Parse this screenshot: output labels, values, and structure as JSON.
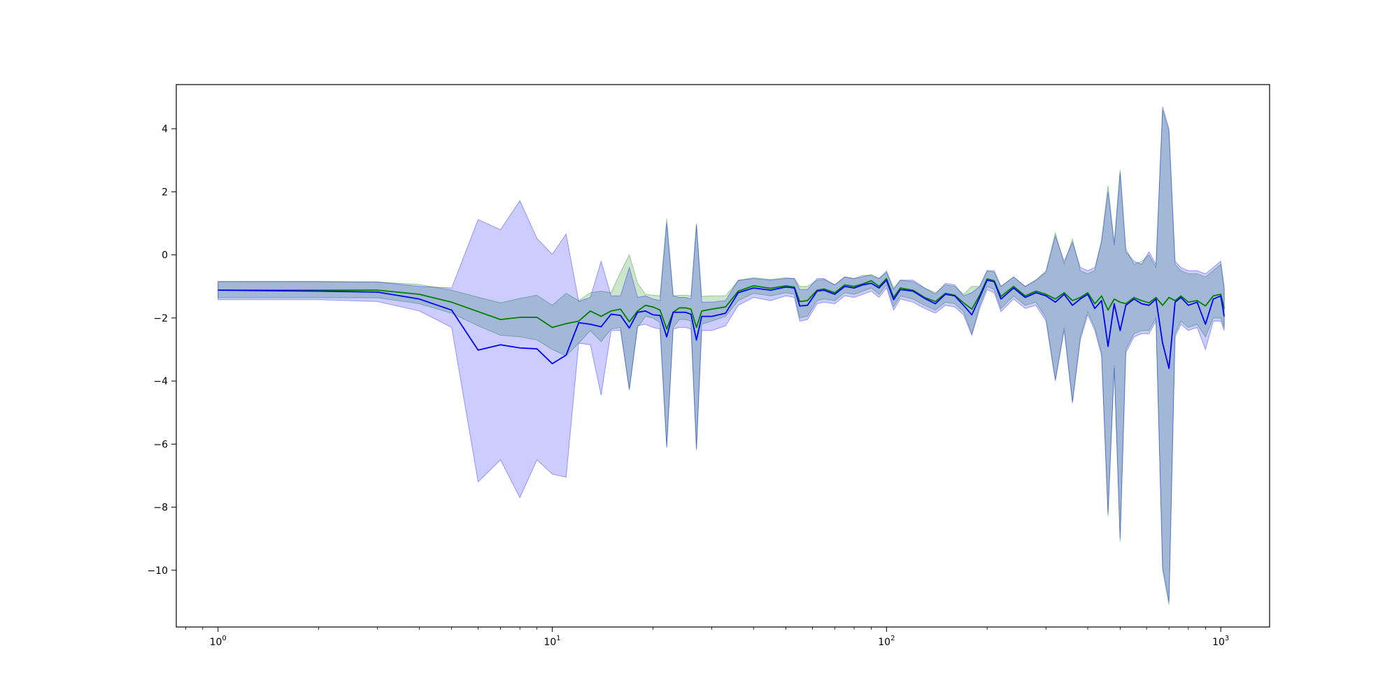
{
  "chart_data": {
    "type": "line",
    "title": "",
    "xlabel": "",
    "ylabel": "",
    "xscale": "log",
    "xlim": [
      0.75,
      1400
    ],
    "ylim": [
      -11.8,
      5.4
    ],
    "grid": false,
    "x_ticks": [
      {
        "value": 1,
        "base": "10",
        "exp": "0"
      },
      {
        "value": 10,
        "base": "10",
        "exp": "1"
      },
      {
        "value": 100,
        "base": "10",
        "exp": "2"
      },
      {
        "value": 1000,
        "base": "10",
        "exp": "3"
      }
    ],
    "y_ticks": [
      {
        "value": 4,
        "label": "4"
      },
      {
        "value": 2,
        "label": "2"
      },
      {
        "value": 0,
        "label": "0"
      },
      {
        "value": -2,
        "label": "−2"
      },
      {
        "value": -4,
        "label": "−4"
      },
      {
        "value": -6,
        "label": "−6"
      },
      {
        "value": -8,
        "label": "−8"
      },
      {
        "value": -10,
        "label": "−10"
      }
    ],
    "series": [
      {
        "color": "#008000",
        "band_color": "#008000",
        "band_opacity": 0.2,
        "x": [
          1,
          2,
          3,
          4,
          5,
          6,
          7,
          8,
          9,
          10,
          11,
          12,
          13,
          14,
          15,
          16,
          17,
          18,
          19,
          20,
          21,
          22,
          23,
          24,
          25,
          26,
          27,
          28,
          30,
          33,
          36,
          40,
          45,
          50,
          53,
          55,
          58,
          62,
          65,
          70,
          75,
          80,
          85,
          90,
          95,
          100,
          105,
          110,
          120,
          130,
          140,
          150,
          160,
          170,
          180,
          190,
          200,
          210,
          220,
          240,
          260,
          280,
          300,
          320,
          340,
          360,
          380,
          400,
          420,
          440,
          460,
          480,
          500,
          520,
          550,
          580,
          610,
          640,
          670,
          700,
          730,
          760,
          800,
          850,
          900,
          950,
          1000,
          1024
        ],
        "y": [
          -1.12,
          -1.12,
          -1.12,
          -1.25,
          -1.5,
          -1.8,
          -2.05,
          -1.98,
          -1.98,
          -2.3,
          -2.18,
          -2.1,
          -1.78,
          -1.95,
          -1.78,
          -1.72,
          -2.12,
          -1.78,
          -1.6,
          -1.65,
          -1.75,
          -2.35,
          -1.82,
          -1.68,
          -1.68,
          -1.72,
          -2.3,
          -1.78,
          -1.72,
          -1.65,
          -1.15,
          -0.98,
          -1.06,
          -0.98,
          -1.02,
          -1.48,
          -1.45,
          -1.12,
          -1.08,
          -1.2,
          -0.95,
          -1.0,
          -0.92,
          -0.82,
          -1.0,
          -0.75,
          -1.35,
          -1.05,
          -1.12,
          -1.35,
          -1.48,
          -1.22,
          -1.28,
          -1.52,
          -1.72,
          -1.28,
          -0.76,
          -0.82,
          -1.32,
          -1.0,
          -1.3,
          -1.15,
          -1.25,
          -1.4,
          -1.2,
          -1.45,
          -1.35,
          -1.2,
          -1.55,
          -1.3,
          -1.75,
          -1.4,
          -1.5,
          -1.55,
          -1.35,
          -1.45,
          -1.52,
          -1.35,
          -1.6,
          -1.35,
          -1.45,
          -1.3,
          -1.5,
          -1.45,
          -1.62,
          -1.3,
          -1.25,
          -1.7
        ],
        "lower": [
          -1.36,
          -1.36,
          -1.36,
          -1.55,
          -1.85,
          -2.25,
          -2.55,
          -2.6,
          -2.7,
          -3.0,
          -3.2,
          -2.8,
          -2.4,
          -2.75,
          -2.35,
          -2.3,
          -4.3,
          -2.3,
          -1.95,
          -2.0,
          -2.15,
          -6.1,
          -2.3,
          -2.05,
          -2.05,
          -2.1,
          -6.2,
          -2.2,
          -2.1,
          -1.95,
          -1.45,
          -1.22,
          -1.3,
          -1.2,
          -1.25,
          -2.0,
          -1.95,
          -1.45,
          -1.4,
          -1.45,
          -1.2,
          -1.25,
          -1.15,
          -1.05,
          -1.25,
          -0.95,
          -1.65,
          -1.3,
          -1.4,
          -1.6,
          -1.75,
          -1.5,
          -1.55,
          -1.8,
          -2.5,
          -1.6,
          -1.0,
          -1.1,
          -1.7,
          -1.3,
          -1.6,
          -1.5,
          -2.0,
          -3.95,
          -2.3,
          -4.65,
          -2.6,
          -1.8,
          -2.3,
          -3.1,
          -8.3,
          -3.5,
          -9.1,
          -3.0,
          -2.5,
          -2.4,
          -2.4,
          -2.0,
          -10.0,
          -11.1,
          -2.5,
          -2.1,
          -2.3,
          -2.2,
          -2.6,
          -2.0,
          -2.0,
          -2.3
        ],
        "upper": [
          -0.86,
          -0.86,
          -0.86,
          -0.94,
          -1.12,
          -1.34,
          -1.52,
          -1.38,
          -1.28,
          -1.6,
          -1.22,
          -1.45,
          -1.2,
          -1.15,
          -1.2,
          -0.55,
          0.0,
          -0.9,
          -1.25,
          -1.28,
          -1.3,
          1.15,
          -1.3,
          -1.28,
          -1.28,
          -1.3,
          1.0,
          -1.32,
          -1.3,
          -1.3,
          -0.82,
          -0.72,
          -0.78,
          -0.72,
          -0.75,
          -1.0,
          -1.0,
          -0.8,
          -0.78,
          -0.95,
          -0.7,
          -0.75,
          -0.7,
          -0.62,
          -0.75,
          -0.5,
          -1.05,
          -0.8,
          -0.85,
          -1.05,
          -1.2,
          -0.95,
          -1.0,
          -1.25,
          -1.0,
          -1.0,
          -0.5,
          -0.55,
          -1.0,
          -0.7,
          -1.0,
          -0.8,
          -0.5,
          0.7,
          -0.3,
          0.5,
          -0.5,
          -0.6,
          -0.5,
          0.5,
          2.2,
          0.4,
          2.7,
          0.2,
          -0.3,
          -0.2,
          0.0,
          -0.4,
          4.6,
          3.9,
          -0.3,
          -0.5,
          -0.6,
          -0.6,
          -0.7,
          -0.5,
          -0.3,
          -1.1
        ]
      },
      {
        "color": "#0000ff",
        "band_color": "#0000ff",
        "band_opacity": 0.2,
        "x": [
          1,
          2,
          3,
          4,
          5,
          6,
          7,
          8,
          9,
          10,
          11,
          12,
          13,
          14,
          15,
          16,
          17,
          18,
          19,
          20,
          21,
          22,
          23,
          24,
          25,
          26,
          27,
          28,
          30,
          33,
          36,
          40,
          45,
          50,
          53,
          55,
          58,
          62,
          65,
          70,
          75,
          80,
          85,
          90,
          95,
          100,
          105,
          110,
          120,
          130,
          140,
          150,
          160,
          170,
          180,
          190,
          200,
          210,
          220,
          240,
          260,
          280,
          300,
          320,
          340,
          360,
          380,
          400,
          420,
          440,
          460,
          480,
          500,
          520,
          550,
          580,
          610,
          640,
          670,
          700,
          730,
          760,
          800,
          850,
          900,
          950,
          1000,
          1024
        ],
        "y": [
          -1.12,
          -1.15,
          -1.18,
          -1.4,
          -1.75,
          -3.02,
          -2.85,
          -2.95,
          -2.98,
          -3.45,
          -3.18,
          -2.15,
          -2.2,
          -2.28,
          -1.88,
          -1.92,
          -2.32,
          -1.82,
          -1.78,
          -1.9,
          -1.92,
          -2.6,
          -1.82,
          -1.82,
          -1.82,
          -1.88,
          -2.7,
          -1.95,
          -1.95,
          -1.85,
          -1.2,
          -1.05,
          -1.12,
          -1.02,
          -1.05,
          -1.62,
          -1.6,
          -1.15,
          -1.12,
          -1.25,
          -1.0,
          -1.05,
          -0.95,
          -0.9,
          -1.05,
          -0.8,
          -1.42,
          -1.1,
          -1.15,
          -1.38,
          -1.55,
          -1.25,
          -1.3,
          -1.6,
          -1.9,
          -1.35,
          -0.8,
          -0.85,
          -1.4,
          -1.05,
          -1.35,
          -1.2,
          -1.3,
          -1.5,
          -1.25,
          -1.6,
          -1.4,
          -1.25,
          -1.7,
          -1.45,
          -2.9,
          -1.55,
          -2.4,
          -1.6,
          -1.4,
          -1.55,
          -1.6,
          -1.4,
          -2.8,
          -3.6,
          -1.5,
          -1.35,
          -1.6,
          -1.5,
          -2.2,
          -1.4,
          -1.3,
          -1.95
        ],
        "lower": [
          -1.42,
          -1.42,
          -1.48,
          -1.78,
          -2.3,
          -7.2,
          -6.5,
          -7.7,
          -6.5,
          -6.95,
          -7.05,
          -2.8,
          -2.85,
          -4.45,
          -2.4,
          -2.4,
          -4.25,
          -2.25,
          -2.2,
          -2.3,
          -2.35,
          -6.1,
          -2.35,
          -2.3,
          -2.3,
          -2.35,
          -6.15,
          -2.4,
          -2.4,
          -2.25,
          -1.6,
          -1.35,
          -1.45,
          -1.3,
          -1.35,
          -2.1,
          -2.05,
          -1.55,
          -1.5,
          -1.55,
          -1.3,
          -1.35,
          -1.25,
          -1.15,
          -1.35,
          -1.05,
          -1.75,
          -1.4,
          -1.5,
          -1.7,
          -1.85,
          -1.6,
          -1.65,
          -1.9,
          -2.55,
          -1.7,
          -1.1,
          -1.2,
          -1.8,
          -1.4,
          -1.7,
          -1.6,
          -2.1,
          -4.0,
          -2.4,
          -4.7,
          -2.7,
          -1.9,
          -2.4,
          -3.2,
          -8.2,
          -3.6,
          -9.0,
          -3.1,
          -2.6,
          -2.5,
          -2.5,
          -2.1,
          -9.9,
          -11.0,
          -2.6,
          -2.2,
          -2.4,
          -2.3,
          -3.0,
          -2.1,
          -2.1,
          -2.4
        ],
        "upper": [
          -0.84,
          -0.84,
          -0.86,
          -1.0,
          -1.05,
          1.12,
          0.8,
          1.72,
          0.52,
          0.02,
          0.66,
          -1.48,
          -1.35,
          -0.2,
          -1.3,
          -1.3,
          -0.4,
          -1.35,
          -1.3,
          -1.4,
          -1.45,
          1.0,
          -1.3,
          -1.35,
          -1.35,
          -1.4,
          0.95,
          -1.5,
          -1.5,
          -1.45,
          -0.8,
          -0.75,
          -0.8,
          -0.75,
          -0.75,
          -1.1,
          -1.1,
          -0.75,
          -0.75,
          -0.95,
          -0.7,
          -0.75,
          -0.65,
          -0.65,
          -0.75,
          -0.55,
          -1.1,
          -0.8,
          -0.8,
          -1.05,
          -1.25,
          -0.9,
          -0.95,
          -1.3,
          -1.2,
          -1.0,
          -0.5,
          -0.5,
          -1.0,
          -0.7,
          -1.0,
          -0.8,
          -0.55,
          0.6,
          -0.2,
          0.4,
          -0.4,
          -0.5,
          -0.4,
          0.4,
          2.0,
          0.3,
          2.6,
          0.1,
          -0.2,
          -0.3,
          0.1,
          -0.3,
          4.7,
          4.0,
          -0.2,
          -0.4,
          -0.5,
          -0.5,
          -0.6,
          -0.4,
          -0.2,
          -1.0
        ]
      }
    ]
  }
}
